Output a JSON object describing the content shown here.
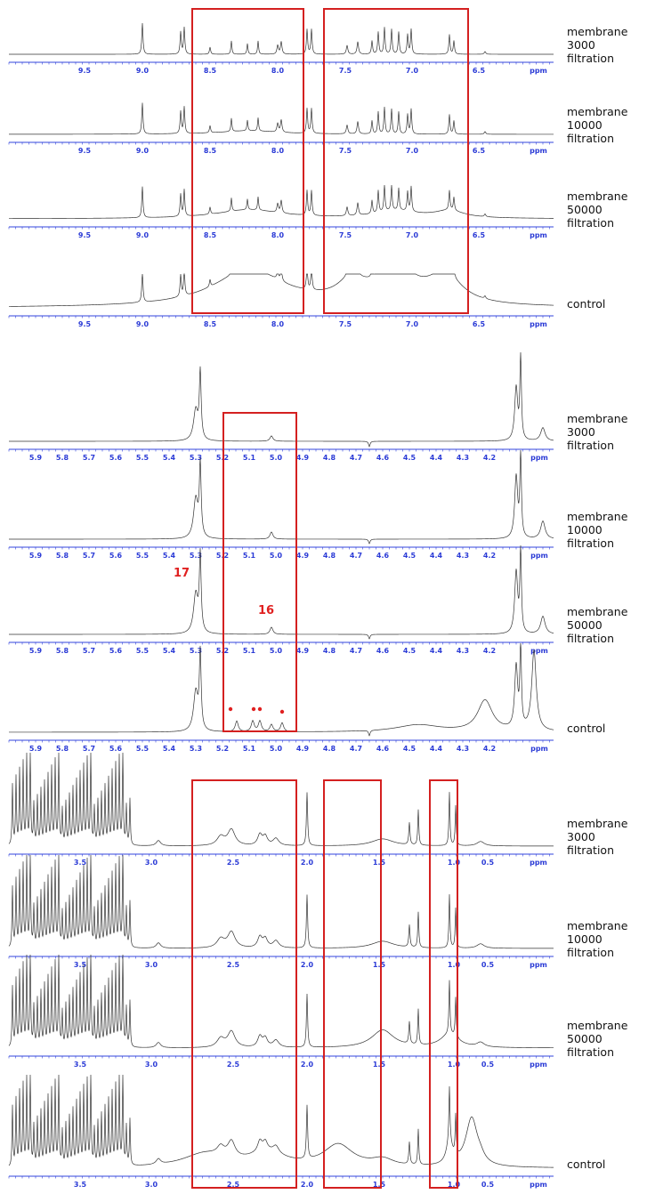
{
  "panels": [
    {
      "ticks": [
        "9.5",
        "9.0",
        "8.5",
        "8.0",
        "7.5",
        "7.0",
        "6.5"
      ],
      "unit": "ppm",
      "spectra": [
        {
          "label": [
            "membrane",
            "3000",
            "filtration"
          ]
        },
        {
          "label": [
            "membrane",
            "10000",
            "filtration"
          ]
        },
        {
          "label": [
            "membrane",
            "50000",
            "filtration"
          ]
        },
        {
          "label": [
            "control"
          ]
        }
      ]
    },
    {
      "ticks": [
        "5.9",
        "5.8",
        "5.7",
        "5.6",
        "5.5",
        "5.4",
        "5.3",
        "5.2",
        "5.1",
        "5.0",
        "4.9",
        "4.8",
        "4.7",
        "4.6",
        "4.5",
        "4.4",
        "4.3",
        "4.2"
      ],
      "unit": "ppm",
      "spectra": [
        {
          "label": [
            "membrane",
            "3000",
            "filtration"
          ]
        },
        {
          "label": [
            "membrane",
            "10000",
            "filtration"
          ]
        },
        {
          "label": [
            "membrane",
            "50000",
            "filtration"
          ]
        },
        {
          "label": [
            "control"
          ]
        }
      ],
      "annotations": [
        "17",
        "16"
      ]
    },
    {
      "ticks": [
        "3.5",
        "3.0",
        "2.5",
        "2.0",
        "1.5",
        "1.0",
        "0.5"
      ],
      "unit": "ppm",
      "spectra": [
        {
          "label": [
            "membrane",
            "3000",
            "filtration"
          ]
        },
        {
          "label": [
            "membrane",
            "10000",
            "filtration"
          ]
        },
        {
          "label": [
            "membrane",
            "50000",
            "filtration"
          ]
        },
        {
          "label": [
            "control"
          ]
        }
      ]
    }
  ]
}
